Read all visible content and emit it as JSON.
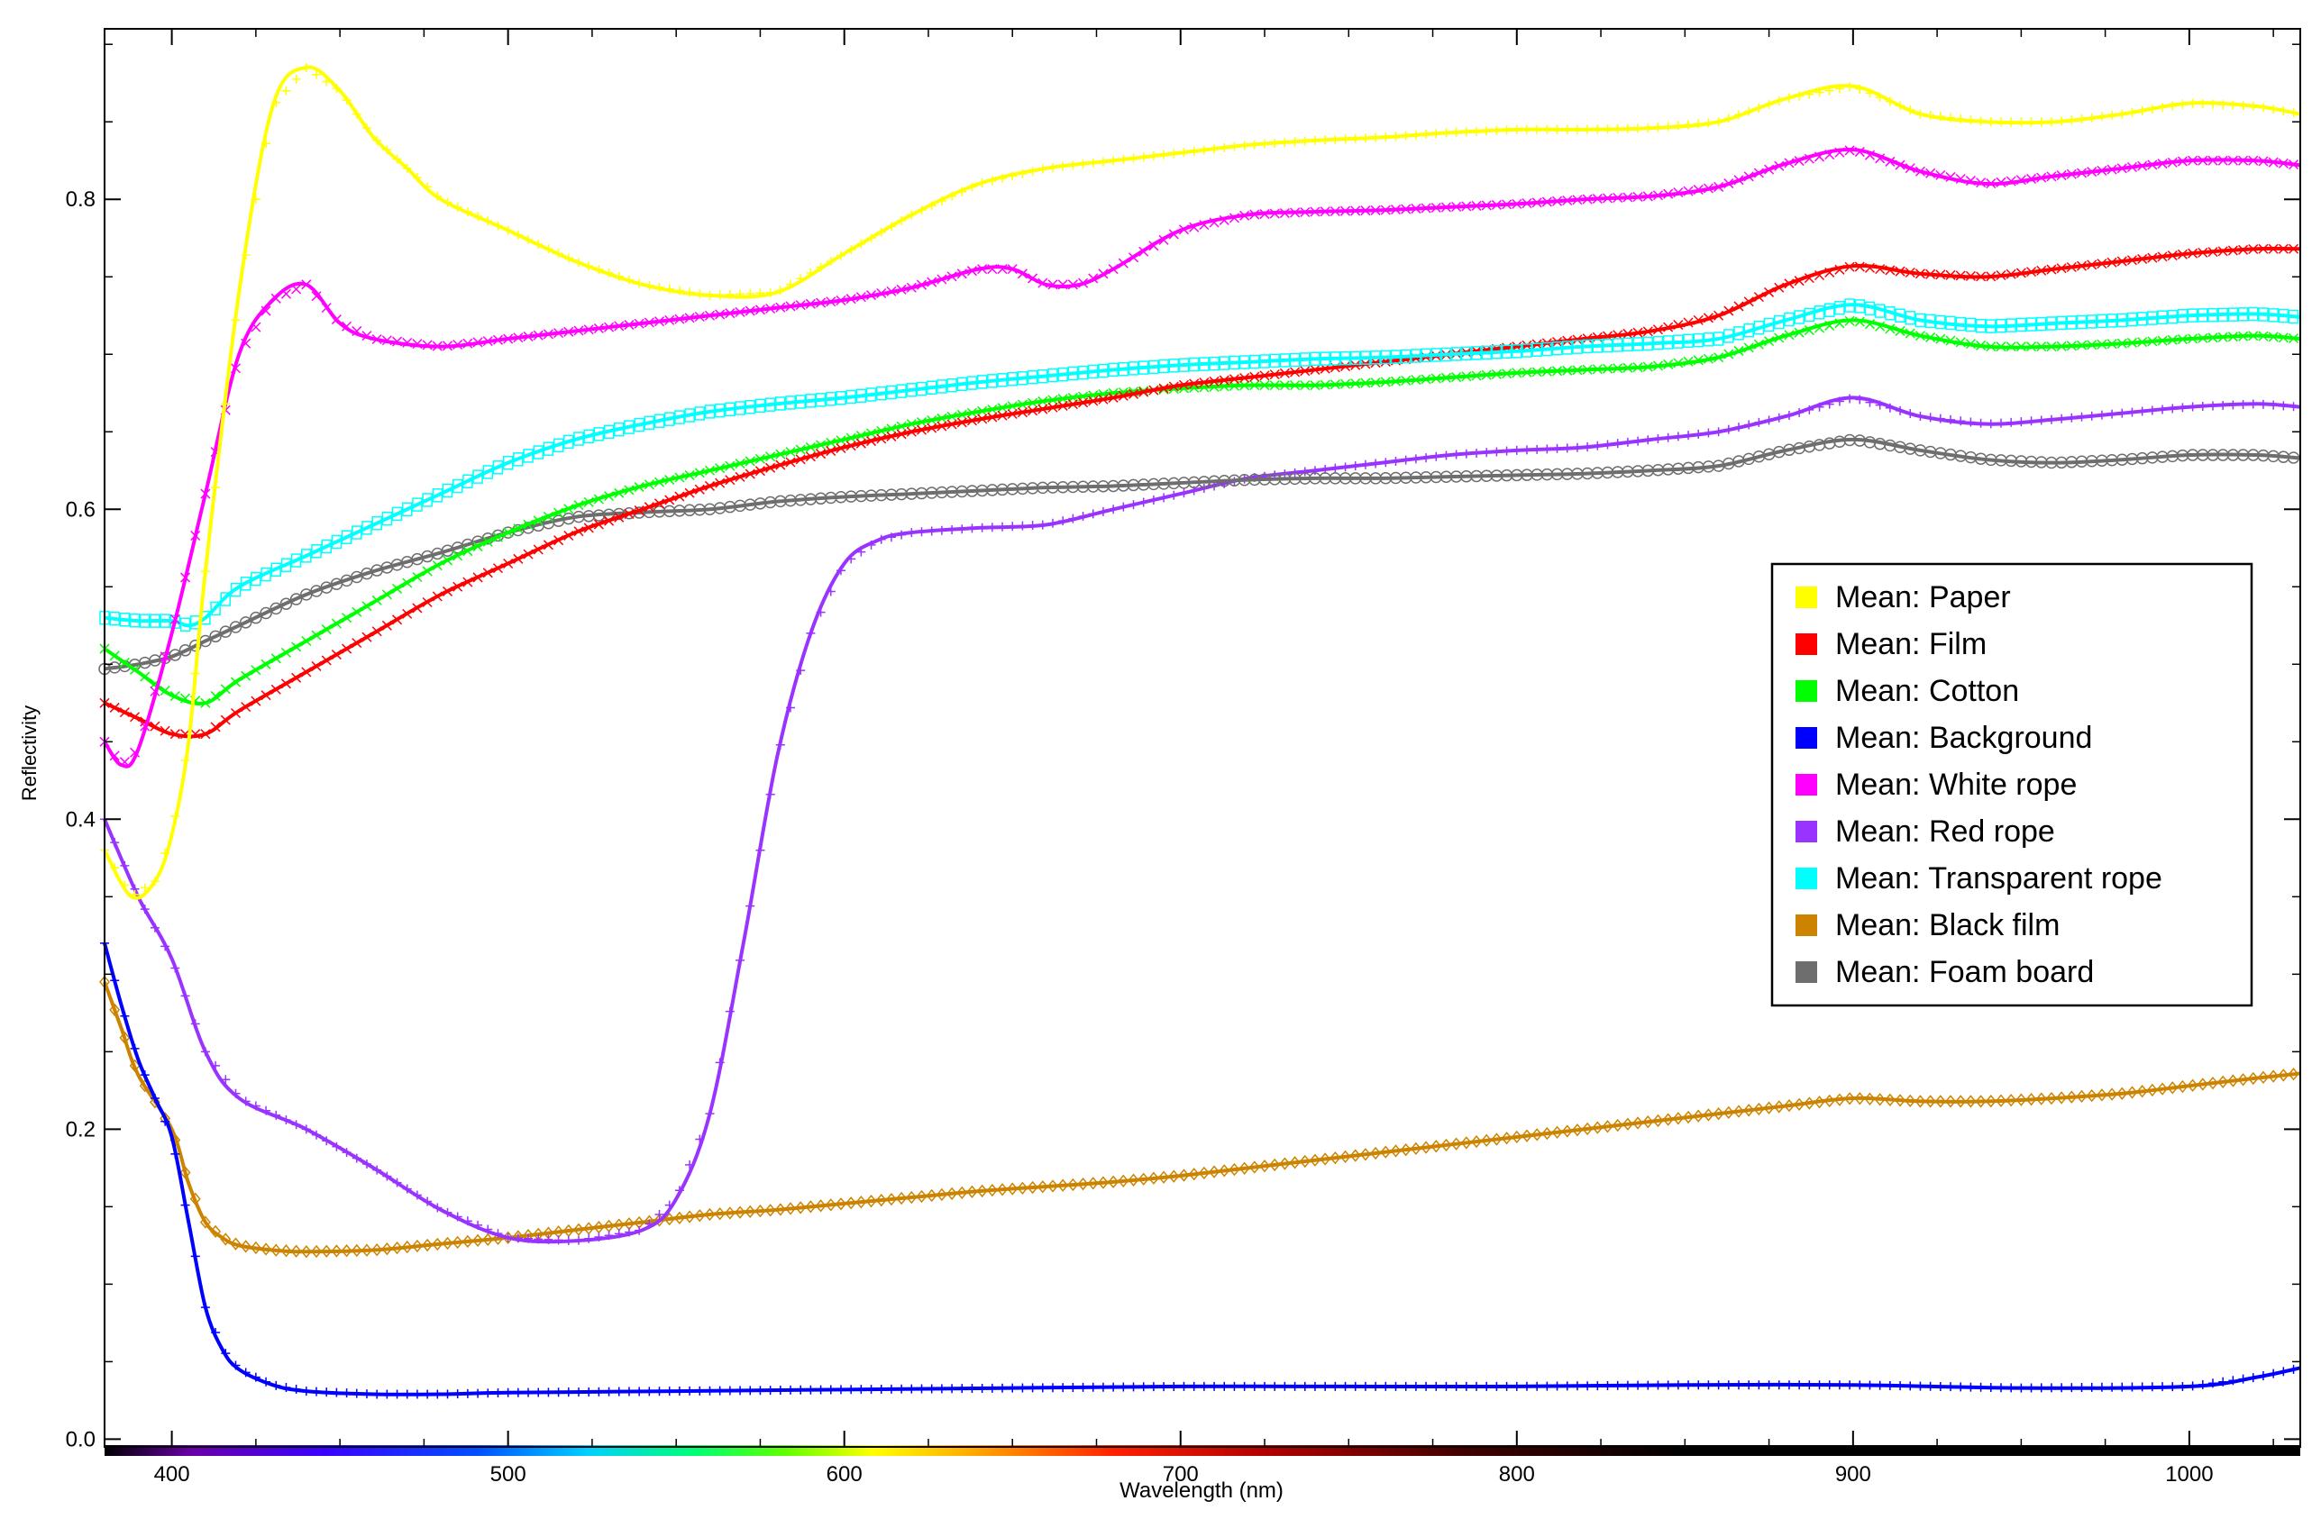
{
  "chart_data": {
    "type": "line",
    "title": "",
    "xlabel": "Wavelength (nm)",
    "ylabel": "Reflectivity",
    "xlim": [
      380,
      1033
    ],
    "ylim": [
      -0.005,
      0.91
    ],
    "x_ticks": [
      400,
      500,
      600,
      700,
      800,
      900,
      1000
    ],
    "x_tick_labels": [
      "400",
      "500",
      "600",
      "700",
      "800",
      "900",
      "1000"
    ],
    "y_ticks": [
      0.0,
      0.2,
      0.4,
      0.6,
      0.8
    ],
    "y_tick_labels": [
      "0.0",
      "0.2",
      "0.4",
      "0.6",
      "0.8"
    ],
    "grid": false,
    "legend_position": "right",
    "spectrum_colorbar": true,
    "series": [
      {
        "name": "Mean: Paper",
        "color": "#ffff00",
        "marker": "+",
        "x": [
          380,
          388,
          395,
          400,
          405,
          410,
          420,
          430,
          440,
          450,
          460,
          470,
          480,
          500,
          520,
          540,
          560,
          580,
          600,
          620,
          640,
          660,
          680,
          700,
          720,
          740,
          760,
          780,
          800,
          820,
          840,
          860,
          880,
          900,
          920,
          940,
          960,
          980,
          1000,
          1020,
          1033
        ],
        "values": [
          0.38,
          0.35,
          0.36,
          0.39,
          0.45,
          0.56,
          0.74,
          0.86,
          0.885,
          0.87,
          0.84,
          0.82,
          0.8,
          0.78,
          0.76,
          0.745,
          0.738,
          0.74,
          0.765,
          0.79,
          0.81,
          0.82,
          0.825,
          0.83,
          0.835,
          0.838,
          0.84,
          0.843,
          0.845,
          0.845,
          0.846,
          0.85,
          0.865,
          0.873,
          0.855,
          0.85,
          0.85,
          0.855,
          0.862,
          0.86,
          0.855
        ]
      },
      {
        "name": "Mean: Film",
        "color": "#ff0000",
        "marker": "*",
        "x": [
          380,
          390,
          400,
          410,
          420,
          440,
          460,
          480,
          500,
          520,
          540,
          560,
          580,
          600,
          620,
          640,
          660,
          680,
          700,
          720,
          740,
          760,
          780,
          800,
          820,
          840,
          860,
          880,
          900,
          920,
          940,
          960,
          980,
          1000,
          1020,
          1033
        ],
        "values": [
          0.475,
          0.465,
          0.455,
          0.455,
          0.47,
          0.495,
          0.52,
          0.545,
          0.565,
          0.585,
          0.6,
          0.615,
          0.628,
          0.64,
          0.65,
          0.658,
          0.665,
          0.672,
          0.68,
          0.685,
          0.69,
          0.695,
          0.7,
          0.705,
          0.71,
          0.715,
          0.725,
          0.745,
          0.757,
          0.752,
          0.75,
          0.755,
          0.76,
          0.765,
          0.768,
          0.768
        ]
      },
      {
        "name": "Mean: Cotton",
        "color": "#00ff00",
        "marker": "x",
        "x": [
          380,
          390,
          400,
          410,
          420,
          440,
          460,
          480,
          500,
          520,
          540,
          560,
          580,
          600,
          620,
          640,
          660,
          680,
          700,
          720,
          740,
          760,
          780,
          800,
          820,
          840,
          860,
          880,
          900,
          920,
          940,
          960,
          980,
          1000,
          1020,
          1033
        ],
        "values": [
          0.51,
          0.495,
          0.48,
          0.475,
          0.49,
          0.515,
          0.54,
          0.565,
          0.585,
          0.602,
          0.615,
          0.625,
          0.635,
          0.645,
          0.655,
          0.663,
          0.67,
          0.675,
          0.678,
          0.68,
          0.68,
          0.682,
          0.685,
          0.688,
          0.69,
          0.692,
          0.698,
          0.712,
          0.722,
          0.712,
          0.705,
          0.705,
          0.707,
          0.71,
          0.712,
          0.71
        ]
      },
      {
        "name": "Mean: Background",
        "color": "#0000ff",
        "marker": "+",
        "x": [
          380,
          385,
          390,
          395,
          400,
          405,
          410,
          415,
          420,
          430,
          440,
          460,
          480,
          500,
          550,
          600,
          650,
          700,
          750,
          800,
          850,
          900,
          950,
          1000,
          1020,
          1033
        ],
        "values": [
          0.32,
          0.28,
          0.245,
          0.22,
          0.195,
          0.14,
          0.085,
          0.058,
          0.045,
          0.035,
          0.031,
          0.029,
          0.029,
          0.03,
          0.031,
          0.032,
          0.033,
          0.034,
          0.034,
          0.034,
          0.035,
          0.035,
          0.033,
          0.034,
          0.04,
          0.046
        ]
      },
      {
        "name": "Mean: White rope",
        "color": "#ff00ff",
        "marker": "x",
        "x": [
          380,
          385,
          390,
          400,
          410,
          420,
          430,
          440,
          450,
          460,
          480,
          500,
          520,
          540,
          560,
          580,
          600,
          620,
          640,
          650,
          660,
          670,
          680,
          700,
          720,
          740,
          760,
          780,
          800,
          820,
          840,
          860,
          880,
          900,
          920,
          940,
          960,
          980,
          1000,
          1020,
          1033
        ],
        "values": [
          0.45,
          0.435,
          0.445,
          0.52,
          0.61,
          0.7,
          0.735,
          0.745,
          0.72,
          0.71,
          0.705,
          0.71,
          0.715,
          0.72,
          0.725,
          0.73,
          0.735,
          0.743,
          0.755,
          0.755,
          0.745,
          0.745,
          0.755,
          0.78,
          0.79,
          0.792,
          0.793,
          0.795,
          0.797,
          0.8,
          0.802,
          0.808,
          0.823,
          0.832,
          0.818,
          0.81,
          0.815,
          0.82,
          0.825,
          0.825,
          0.822
        ]
      },
      {
        "name": "Mean: Red rope",
        "color": "#9933ff",
        "marker": "+",
        "x": [
          380,
          390,
          400,
          410,
          420,
          440,
          460,
          480,
          500,
          520,
          540,
          550,
          560,
          570,
          580,
          590,
          600,
          610,
          620,
          640,
          660,
          680,
          700,
          720,
          740,
          760,
          780,
          800,
          820,
          840,
          860,
          880,
          900,
          920,
          940,
          960,
          980,
          1000,
          1020,
          1033
        ],
        "values": [
          0.4,
          0.35,
          0.31,
          0.25,
          0.22,
          0.2,
          0.175,
          0.148,
          0.13,
          0.128,
          0.135,
          0.155,
          0.21,
          0.32,
          0.44,
          0.52,
          0.565,
          0.58,
          0.585,
          0.588,
          0.59,
          0.6,
          0.61,
          0.62,
          0.625,
          0.63,
          0.635,
          0.638,
          0.64,
          0.645,
          0.65,
          0.66,
          0.672,
          0.66,
          0.655,
          0.658,
          0.662,
          0.666,
          0.668,
          0.666
        ]
      },
      {
        "name": "Mean: Transparent rope",
        "color": "#00ffff",
        "marker": "square",
        "x": [
          380,
          390,
          400,
          405,
          410,
          420,
          440,
          460,
          480,
          500,
          520,
          540,
          560,
          580,
          600,
          620,
          640,
          660,
          680,
          700,
          720,
          740,
          760,
          780,
          800,
          820,
          840,
          860,
          880,
          900,
          920,
          940,
          960,
          980,
          1000,
          1020,
          1033
        ],
        "values": [
          0.53,
          0.528,
          0.528,
          0.525,
          0.53,
          0.55,
          0.57,
          0.59,
          0.61,
          0.63,
          0.645,
          0.655,
          0.663,
          0.668,
          0.672,
          0.677,
          0.682,
          0.686,
          0.69,
          0.693,
          0.695,
          0.697,
          0.698,
          0.7,
          0.702,
          0.705,
          0.707,
          0.71,
          0.722,
          0.732,
          0.722,
          0.718,
          0.72,
          0.722,
          0.725,
          0.726,
          0.724
        ]
      },
      {
        "name": "Mean: Black film",
        "color": "#cc8400",
        "marker": "diamond",
        "x": [
          380,
          385,
          390,
          400,
          405,
          410,
          415,
          420,
          430,
          440,
          460,
          480,
          500,
          520,
          540,
          560,
          580,
          600,
          620,
          640,
          660,
          680,
          700,
          720,
          740,
          760,
          780,
          800,
          820,
          840,
          860,
          880,
          900,
          920,
          940,
          960,
          980,
          1000,
          1020,
          1033
        ],
        "values": [
          0.295,
          0.265,
          0.235,
          0.2,
          0.165,
          0.14,
          0.13,
          0.125,
          0.122,
          0.121,
          0.122,
          0.126,
          0.13,
          0.135,
          0.14,
          0.145,
          0.148,
          0.152,
          0.156,
          0.16,
          0.163,
          0.166,
          0.17,
          0.175,
          0.18,
          0.185,
          0.19,
          0.195,
          0.2,
          0.205,
          0.21,
          0.215,
          0.22,
          0.218,
          0.218,
          0.22,
          0.223,
          0.228,
          0.233,
          0.236
        ]
      },
      {
        "name": "Mean: Foam board",
        "color": "#6e6e6e",
        "marker": "circle",
        "x": [
          380,
          390,
          400,
          410,
          420,
          440,
          460,
          480,
          500,
          520,
          540,
          560,
          580,
          600,
          620,
          640,
          660,
          680,
          700,
          720,
          740,
          760,
          780,
          800,
          820,
          840,
          860,
          880,
          900,
          920,
          940,
          960,
          980,
          1000,
          1020,
          1033
        ],
        "values": [
          0.497,
          0.5,
          0.505,
          0.515,
          0.525,
          0.545,
          0.56,
          0.572,
          0.585,
          0.595,
          0.598,
          0.6,
          0.605,
          0.608,
          0.61,
          0.612,
          0.614,
          0.615,
          0.617,
          0.619,
          0.62,
          0.62,
          0.621,
          0.622,
          0.623,
          0.625,
          0.628,
          0.638,
          0.645,
          0.638,
          0.632,
          0.63,
          0.632,
          0.635,
          0.635,
          0.633
        ]
      }
    ]
  }
}
